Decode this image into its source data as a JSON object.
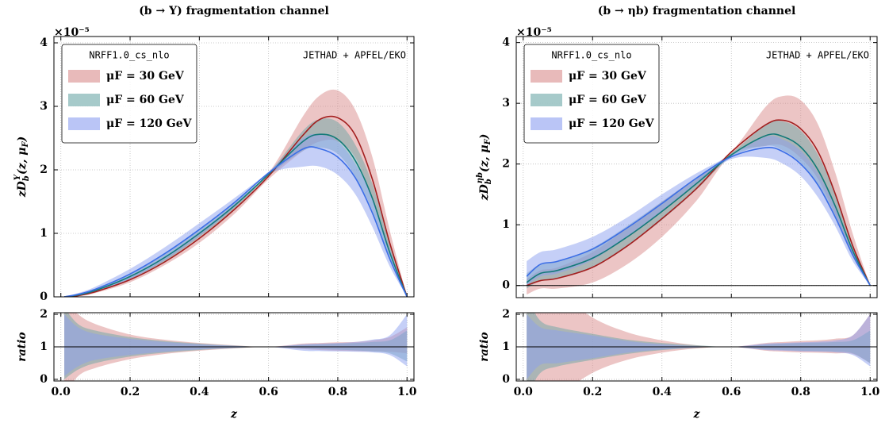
{
  "chart_data": [
    {
      "type": "line",
      "title": "(b → Υ) fragmentation channel",
      "y_multiplier": "×10⁻⁵",
      "ylabel": [
        "zD",
        "b",
        "Υ",
        "(z, μ",
        "F",
        ")"
      ],
      "legend": "upper left",
      "legend_title": "NRFF1.0_cs_nlo",
      "annotation": "JETHAD + APFEL/EKO",
      "grid": true,
      "xtick_labels": false,
      "xlim": [
        -0.02,
        1.02
      ],
      "ylim": [
        0,
        4.1
      ],
      "xticks": [
        0,
        0.2,
        0.4,
        0.6,
        0.8,
        1
      ],
      "yticks": [
        0,
        1,
        2,
        3,
        4
      ],
      "x": [
        0.01,
        0.05,
        0.1,
        0.2,
        0.3,
        0.4,
        0.5,
        0.6,
        0.7,
        0.75,
        0.8,
        0.85,
        0.9,
        0.95,
        1.0
      ],
      "series": [
        {
          "name": "μF = 30 GeV",
          "color": "#a31f1f",
          "band_color": "#d98c8c",
          "values": [
            0,
            0.02,
            0.08,
            0.27,
            0.55,
            0.92,
            1.37,
            1.9,
            2.55,
            2.8,
            2.82,
            2.55,
            1.85,
            0.85,
            0
          ],
          "upper": [
            0,
            0.02,
            0.09,
            0.3,
            0.6,
            1.0,
            1.45,
            1.95,
            2.85,
            3.18,
            3.25,
            2.95,
            2.2,
            1.05,
            0
          ],
          "lower": [
            0,
            0.01,
            0.06,
            0.23,
            0.5,
            0.85,
            1.3,
            1.85,
            2.3,
            2.45,
            2.45,
            2.2,
            1.55,
            0.7,
            0
          ]
        },
        {
          "name": "μF = 60 GeV",
          "color": "#137a7a",
          "band_color": "#6aa6a6",
          "values": [
            0,
            0.03,
            0.1,
            0.32,
            0.62,
            1.0,
            1.43,
            1.93,
            2.45,
            2.56,
            2.48,
            2.15,
            1.55,
            0.7,
            0
          ],
          "upper": [
            0,
            0.04,
            0.12,
            0.36,
            0.68,
            1.06,
            1.48,
            1.95,
            2.62,
            2.8,
            2.75,
            2.4,
            1.78,
            0.85,
            0
          ],
          "lower": [
            0,
            0.02,
            0.08,
            0.28,
            0.56,
            0.94,
            1.38,
            1.9,
            2.3,
            2.35,
            2.25,
            1.9,
            1.35,
            0.58,
            0
          ]
        },
        {
          "name": "μF = 120 GeV",
          "color": "#3c6ee6",
          "band_color": "#8c9ff0",
          "values": [
            0,
            0.04,
            0.12,
            0.36,
            0.68,
            1.06,
            1.48,
            1.95,
            2.33,
            2.33,
            2.2,
            1.88,
            1.32,
            0.6,
            0
          ],
          "upper": [
            0,
            0.06,
            0.16,
            0.44,
            0.78,
            1.16,
            1.55,
            1.97,
            2.5,
            2.55,
            2.45,
            2.1,
            1.55,
            0.75,
            0
          ],
          "lower": [
            0,
            0.02,
            0.08,
            0.28,
            0.58,
            0.96,
            1.41,
            1.93,
            2.05,
            2.05,
            1.92,
            1.62,
            1.1,
            0.48,
            0
          ]
        }
      ]
    },
    {
      "type": "line",
      "ylabel": [
        "ratio"
      ],
      "xlabel": "z",
      "grid": true,
      "xtick_labels": true,
      "hline": 1,
      "xlim": [
        -0.02,
        1.02
      ],
      "ylim": [
        -0.05,
        2.05
      ],
      "xticks": [
        {
          "value": 0,
          "label": "0.0"
        },
        0.2,
        0.4,
        0.6,
        0.8,
        {
          "value": 1,
          "label": "1.0"
        }
      ],
      "yticks": [
        0,
        1,
        2
      ],
      "x": [
        0.01,
        0.05,
        0.1,
        0.2,
        0.3,
        0.4,
        0.5,
        0.6,
        0.7,
        0.75,
        0.8,
        0.85,
        0.9,
        0.95,
        1.0
      ],
      "series": [
        {
          "color": "#a31f1f",
          "band_color": "#d98c8c",
          "upper": [
            2.5,
            2.0,
            1.7,
            1.38,
            1.22,
            1.12,
            1.05,
            1.0,
            1.1,
            1.12,
            1.14,
            1.15,
            1.2,
            1.3,
            1.6
          ],
          "lower": [
            -0.5,
            0.1,
            0.35,
            0.62,
            0.78,
            0.88,
            0.95,
            1.0,
            0.93,
            0.9,
            0.88,
            0.87,
            0.86,
            0.85,
            0.8
          ]
        },
        {
          "color": "#137a7a",
          "band_color": "#6aa6a6",
          "upper": [
            2.2,
            1.7,
            1.5,
            1.3,
            1.18,
            1.1,
            1.04,
            1.0,
            1.06,
            1.08,
            1.1,
            1.12,
            1.15,
            1.2,
            1.5
          ],
          "lower": [
            0,
            0.3,
            0.5,
            0.7,
            0.82,
            0.9,
            0.96,
            1.0,
            0.95,
            0.93,
            0.91,
            0.89,
            0.86,
            0.8,
            0.55
          ]
        },
        {
          "color": "#3c6ee6",
          "band_color": "#8c9ff0",
          "upper": [
            2.0,
            1.6,
            1.4,
            1.25,
            1.15,
            1.08,
            1.03,
            1.0,
            1.08,
            1.1,
            1.12,
            1.15,
            1.22,
            1.35,
            2.0
          ],
          "lower": [
            0.1,
            0.4,
            0.6,
            0.75,
            0.85,
            0.92,
            0.97,
            1.0,
            0.88,
            0.87,
            0.86,
            0.85,
            0.83,
            0.75,
            0.4
          ]
        }
      ]
    },
    {
      "type": "line",
      "title": "(b → ηb) fragmentation channel",
      "y_multiplier": "×10⁻⁵",
      "ylabel": [
        "zD",
        "b",
        "ηb",
        "(z, μ",
        "F",
        ")"
      ],
      "legend": "upper left",
      "legend_title": "NRFF1.0_cs_nlo",
      "annotation": "JETHAD + APFEL/EKO",
      "grid": true,
      "xtick_labels": false,
      "hline": 0,
      "xlim": [
        -0.02,
        1.02
      ],
      "ylim": [
        -0.2,
        4.1
      ],
      "xticks": [
        0,
        0.2,
        0.4,
        0.6,
        0.8,
        1
      ],
      "yticks": [
        0,
        1,
        2,
        3,
        4
      ],
      "x": [
        0.01,
        0.05,
        0.1,
        0.2,
        0.3,
        0.4,
        0.5,
        0.6,
        0.7,
        0.75,
        0.8,
        0.85,
        0.9,
        0.95,
        1.0
      ],
      "series": [
        {
          "name": "μF = 30 GeV",
          "color": "#a31f1f",
          "band_color": "#d98c8c",
          "values": [
            0,
            0.08,
            0.12,
            0.3,
            0.65,
            1.1,
            1.6,
            2.2,
            2.65,
            2.72,
            2.58,
            2.2,
            1.5,
            0.65,
            0
          ],
          "upper": [
            0.1,
            0.25,
            0.3,
            0.55,
            0.95,
            1.38,
            1.78,
            2.2,
            2.95,
            3.12,
            3.05,
            2.65,
            1.85,
            0.85,
            0
          ],
          "lower": [
            -0.15,
            -0.05,
            -0.05,
            0.05,
            0.35,
            0.8,
            1.4,
            2.15,
            2.3,
            2.3,
            2.1,
            1.75,
            1.15,
            0.48,
            0
          ]
        },
        {
          "name": "μF = 60 GeV",
          "color": "#137a7a",
          "band_color": "#6aa6a6",
          "values": [
            0.05,
            0.2,
            0.25,
            0.45,
            0.8,
            1.22,
            1.68,
            2.15,
            2.47,
            2.45,
            2.28,
            1.9,
            1.3,
            0.57,
            0
          ],
          "upper": [
            0.2,
            0.35,
            0.4,
            0.62,
            0.98,
            1.38,
            1.78,
            2.18,
            2.65,
            2.7,
            2.55,
            2.15,
            1.5,
            0.68,
            0
          ],
          "lower": [
            -0.05,
            0.08,
            0.12,
            0.3,
            0.65,
            1.08,
            1.58,
            2.12,
            2.3,
            2.22,
            2.02,
            1.65,
            1.1,
            0.47,
            0
          ]
        },
        {
          "name": "μF = 120 GeV",
          "color": "#3c6ee6",
          "band_color": "#8c9ff0",
          "values": [
            0.15,
            0.35,
            0.4,
            0.6,
            0.95,
            1.35,
            1.77,
            2.12,
            2.27,
            2.2,
            2.0,
            1.65,
            1.12,
            0.5,
            0
          ],
          "upper": [
            0.4,
            0.55,
            0.6,
            0.8,
            1.12,
            1.5,
            1.85,
            2.15,
            2.45,
            2.4,
            2.22,
            1.85,
            1.28,
            0.6,
            0
          ],
          "lower": [
            0,
            0.15,
            0.2,
            0.42,
            0.8,
            1.22,
            1.68,
            2.08,
            2.1,
            2.0,
            1.8,
            1.45,
            0.97,
            0.4,
            0
          ]
        }
      ]
    },
    {
      "type": "line",
      "ylabel": [
        "ratio"
      ],
      "xlabel": "z",
      "grid": true,
      "xtick_labels": true,
      "hline": 1,
      "xlim": [
        -0.02,
        1.02
      ],
      "ylim": [
        -0.05,
        2.05
      ],
      "xticks": [
        {
          "value": 0,
          "label": "0.0"
        },
        0.2,
        0.4,
        0.6,
        0.8,
        {
          "value": 1,
          "label": "1.0"
        }
      ],
      "yticks": [
        0,
        1,
        2
      ],
      "x": [
        0.01,
        0.05,
        0.1,
        0.2,
        0.3,
        0.4,
        0.5,
        0.6,
        0.7,
        0.75,
        0.8,
        0.85,
        0.9,
        0.95,
        1.0
      ],
      "series": [
        {
          "color": "#a31f1f",
          "band_color": "#d98c8c",
          "upper": [
            3,
            3,
            2.7,
            1.9,
            1.45,
            1.2,
            1.05,
            1.0,
            1.12,
            1.15,
            1.18,
            1.2,
            1.25,
            1.35,
            2.0
          ],
          "lower": [
            -1,
            -0.8,
            -0.5,
            0.2,
            0.6,
            0.82,
            0.95,
            1.0,
            0.88,
            0.85,
            0.83,
            0.82,
            0.8,
            0.78,
            0.5
          ]
        },
        {
          "color": "#137a7a",
          "band_color": "#6aa6a6",
          "upper": [
            2.5,
            1.8,
            1.6,
            1.4,
            1.22,
            1.12,
            1.05,
            1.0,
            1.07,
            1.1,
            1.12,
            1.13,
            1.15,
            1.2,
            1.5
          ],
          "lower": [
            -0.5,
            0.2,
            0.4,
            0.6,
            0.78,
            0.9,
            0.97,
            1.0,
            0.92,
            0.9,
            0.88,
            0.87,
            0.85,
            0.8,
            0.5
          ]
        },
        {
          "color": "#3c6ee6",
          "band_color": "#8c9ff0",
          "upper": [
            2.0,
            1.6,
            1.5,
            1.35,
            1.18,
            1.08,
            1.02,
            1.0,
            1.1,
            1.12,
            1.14,
            1.16,
            1.2,
            1.35,
            2.0
          ],
          "lower": [
            0,
            0.45,
            0.5,
            0.65,
            0.82,
            0.92,
            0.98,
            1.0,
            0.9,
            0.88,
            0.86,
            0.85,
            0.83,
            0.75,
            0.4
          ]
        }
      ]
    }
  ]
}
